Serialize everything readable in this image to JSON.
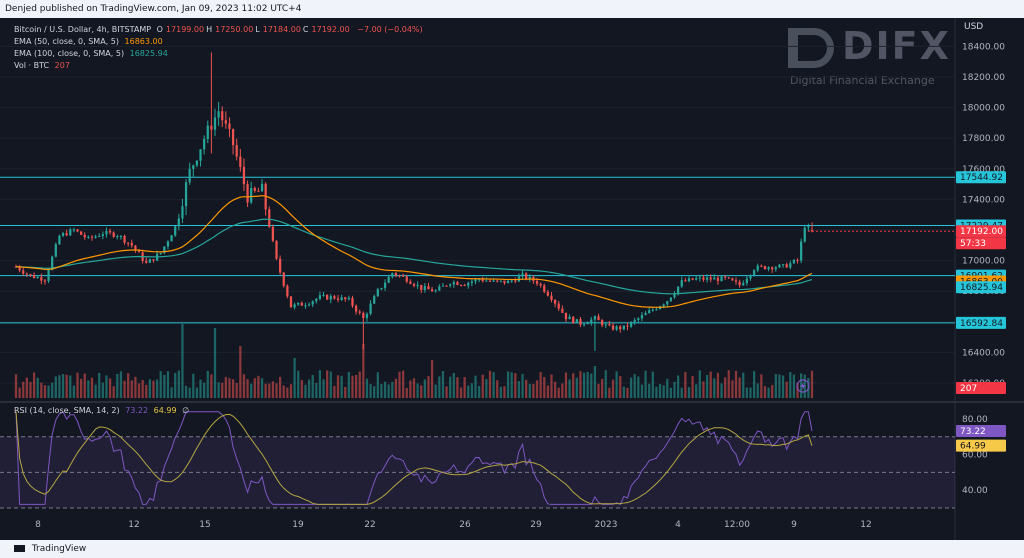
{
  "header": {
    "published_text": "Denjed published on TradingView.com, Jan 09, 2023 11:02 UTC+4"
  },
  "footer": {
    "brand": "TradingView"
  },
  "watermark": {
    "name": "DIFX",
    "tagline": "Digital Financial Exchange"
  },
  "price_axis": {
    "currency": "USD",
    "ticks": [
      "18400.00",
      "18200.00",
      "18000.00",
      "17800.00",
      "17600.00",
      "17400.00",
      "17200.00",
      "17000.00",
      "16800.00",
      "16600.00",
      "16400.00",
      "16200.00"
    ]
  },
  "legend": {
    "symbol": "Bitcoin / U.S. Dollar, 4h, BITSTAMP",
    "ohlc": [
      {
        "k": "O",
        "v": "17199.00"
      },
      {
        "k": "H",
        "v": "17250.00"
      },
      {
        "k": "L",
        "v": "17184.00"
      },
      {
        "k": "C",
        "v": "17192.00"
      }
    ],
    "change": "−7.00 (−0.04%)",
    "ema50_label": "EMA (50, close, 0, SMA, 5)",
    "ema50_value": "16863.00",
    "ema100_label": "EMA (100, close, 0, SMA, 5)",
    "ema100_value": "16825.94",
    "vol_label": "Vol · BTC",
    "vol_value": "207",
    "rsi_label": "RSI (14, close, SMA, 14, 2)",
    "rsi_value": "73.22",
    "rsi_sma_value": "64.99",
    "rsi_extra": "∅"
  },
  "price_badges": [
    {
      "price": 17544.92,
      "label": "17544.92",
      "color": "#26c6da"
    },
    {
      "price": 17229.47,
      "label": "17229.47",
      "color": "#26c6da"
    },
    {
      "price": 17192.0,
      "label": "17192.00",
      "color": "#f23645"
    },
    {
      "price": 16901.62,
      "label": "16901.62",
      "color": "#26c6da"
    },
    {
      "price": 16863.0,
      "label": "16863.00",
      "color": "#ff9800"
    },
    {
      "price": 16825.94,
      "label": "16825.94",
      "color": "#26c6da"
    },
    {
      "price": 16592.84,
      "label": "16592.84",
      "color": "#26c6da"
    }
  ],
  "countdown": "57:33",
  "volume_badge": "207",
  "rsi_axis": {
    "ticks": [
      "80.00",
      "60.00",
      "40.00"
    ],
    "badge_rsi": "73.22",
    "badge_sma": "64.99"
  },
  "x_axis": {
    "ticks": [
      "8",
      "12",
      "15",
      "19",
      "22",
      "26",
      "29",
      "2023",
      "4",
      "12:00",
      "9",
      "12"
    ]
  },
  "colors": {
    "up": "#26a69a",
    "down": "#ef5350",
    "ema50": "#ff9800",
    "ema100": "#26a69a",
    "hline": "#26c6da",
    "rsi": "#7e57c2",
    "rsi_sma": "#b5a642",
    "rsi_band": "#7e57c2"
  },
  "chart_data": {
    "type": "candlestick",
    "title": "Bitcoin / U.S. Dollar, 4h, BITSTAMP",
    "ylim": [
      16200,
      18520
    ],
    "horizontal_levels": [
      17544.92,
      17229.47,
      16901.62,
      16592.84
    ],
    "price_path": [
      {
        "i": 0,
        "p": 16960
      },
      {
        "i": 4,
        "p": 16900
      },
      {
        "i": 8,
        "p": 16880
      },
      {
        "i": 12,
        "p": 17160
      },
      {
        "i": 16,
        "p": 17200
      },
      {
        "i": 20,
        "p": 17140
      },
      {
        "i": 24,
        "p": 17180
      },
      {
        "i": 28,
        "p": 17170
      },
      {
        "i": 32,
        "p": 17100
      },
      {
        "i": 36,
        "p": 16980
      },
      {
        "i": 40,
        "p": 17050
      },
      {
        "i": 44,
        "p": 17220
      },
      {
        "i": 48,
        "p": 17580
      },
      {
        "i": 52,
        "p": 17800
      },
      {
        "i": 56,
        "p": 17980
      },
      {
        "i": 60,
        "p": 17760
      },
      {
        "i": 64,
        "p": 17420
      },
      {
        "i": 68,
        "p": 17460
      },
      {
        "i": 72,
        "p": 17000
      },
      {
        "i": 76,
        "p": 16700
      },
      {
        "i": 80,
        "p": 16720
      },
      {
        "i": 84,
        "p": 16760
      },
      {
        "i": 88,
        "p": 16760
      },
      {
        "i": 92,
        "p": 16740
      },
      {
        "i": 96,
        "p": 16620
      },
      {
        "i": 100,
        "p": 16800
      },
      {
        "i": 104,
        "p": 16920
      },
      {
        "i": 108,
        "p": 16880
      },
      {
        "i": 112,
        "p": 16820
      },
      {
        "i": 116,
        "p": 16800
      },
      {
        "i": 120,
        "p": 16860
      },
      {
        "i": 124,
        "p": 16850
      },
      {
        "i": 128,
        "p": 16880
      },
      {
        "i": 132,
        "p": 16860
      },
      {
        "i": 136,
        "p": 16860
      },
      {
        "i": 140,
        "p": 16900
      },
      {
        "i": 144,
        "p": 16860
      },
      {
        "i": 148,
        "p": 16760
      },
      {
        "i": 152,
        "p": 16630
      },
      {
        "i": 156,
        "p": 16590
      },
      {
        "i": 160,
        "p": 16620
      },
      {
        "i": 164,
        "p": 16560
      },
      {
        "i": 168,
        "p": 16560
      },
      {
        "i": 172,
        "p": 16620
      },
      {
        "i": 176,
        "p": 16680
      },
      {
        "i": 180,
        "p": 16740
      },
      {
        "i": 184,
        "p": 16860
      },
      {
        "i": 188,
        "p": 16880
      },
      {
        "i": 192,
        "p": 16880
      },
      {
        "i": 196,
        "p": 16880
      },
      {
        "i": 200,
        "p": 16840
      },
      {
        "i": 204,
        "p": 16950
      },
      {
        "i": 208,
        "p": 16960
      },
      {
        "i": 212,
        "p": 16960
      },
      {
        "i": 216,
        "p": 17000
      },
      {
        "i": 218,
        "p": 17230
      },
      {
        "i": 220,
        "p": 17192
      }
    ],
    "volume_peak": 207,
    "rsi": {
      "ylim": [
        30,
        85
      ],
      "bands": [
        70,
        30
      ],
      "last": 73.22,
      "sma_last": 64.99
    }
  }
}
